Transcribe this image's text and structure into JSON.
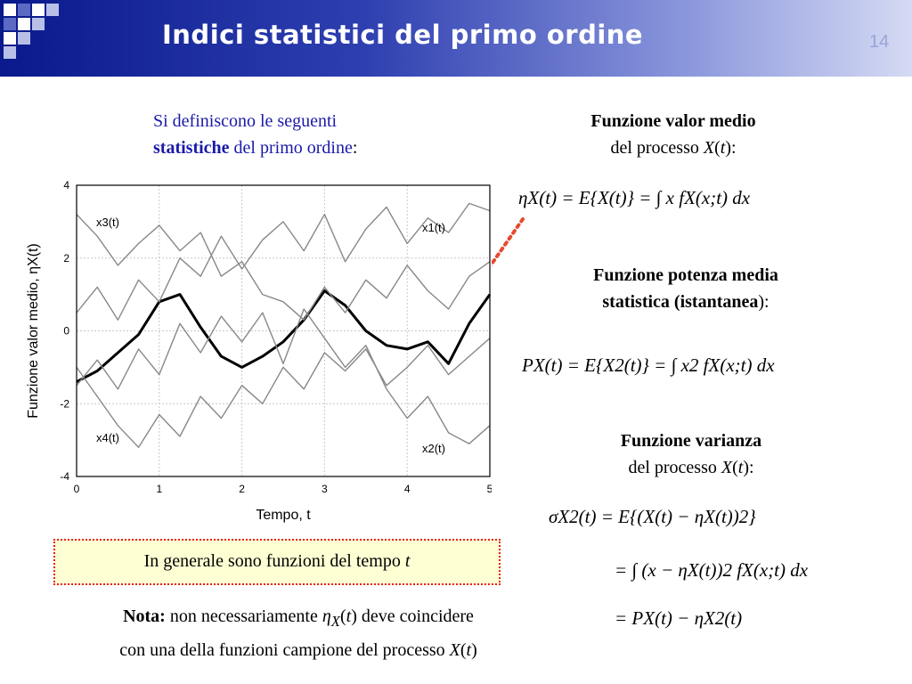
{
  "slide": {
    "title": "Indici statistici del primo ordine",
    "number": "14"
  },
  "colors": {
    "header_dark": "#0a1a8c",
    "intro_text": "#1a1aa8",
    "note_border": "#e52020",
    "note_bg": "#ffffd4",
    "arrow": "#e54a2e"
  },
  "intro": {
    "line1": "Si definiscono le seguenti",
    "bold": "statistiche",
    "line2_rest": " del primo ordine",
    "colon": ":"
  },
  "mean": {
    "heading": "Funzione valor medio",
    "sub_pre": "del processo ",
    "sub_var": "X",
    "sub_arg": "t",
    "formula": "ηX(t) = E{X(t)} = ∫ x fX(x;t) dx"
  },
  "power": {
    "heading_1": "Funzione potenza media",
    "heading_2a": "statistica (",
    "heading_2b": "istantanea",
    "heading_2c": "):",
    "formula": "PX(t) = E{X2(t)} = ∫ x2 fX(x;t) dx"
  },
  "variance": {
    "heading": "Funzione varianza",
    "sub_pre": "del processo ",
    "sub_var": "X",
    "sub_arg": "t",
    "formula_1": "σX2(t) = E{(X(t) − ηX(t))2}",
    "formula_2": "= ∫ (x − ηX(t))2 fX(x;t) dx",
    "formula_3": "= PX(t) − ηX2(t)"
  },
  "note_box": {
    "text": "In generale sono funzioni del tempo ",
    "var": "t"
  },
  "nota": {
    "label": "Nota:",
    "text1": " non necessariamente ",
    "eta": "η",
    "sub": "X",
    "arg": "t",
    "text2": " deve coincidere",
    "line2": "con una della funzioni campione del processo ",
    "var": "X",
    "var_arg": "t"
  },
  "chart_data": {
    "type": "line",
    "xlabel": "Tempo, t",
    "ylabel": "Funzione valor medio, ηX(t)",
    "xlim": [
      0,
      5
    ],
    "ylim": [
      -4,
      4
    ],
    "xticks": [
      "0",
      "1",
      "2",
      "3",
      "4",
      "5"
    ],
    "yticks": [
      "4",
      "2",
      "0",
      "-2",
      "-4"
    ],
    "grid": true,
    "annotations": [
      "x3(t)",
      "x1(t)",
      "x4(t)",
      "x2(t)"
    ],
    "series": [
      {
        "name": "ηX(t)",
        "x": [
          0,
          0.25,
          0.5,
          0.75,
          1.0,
          1.25,
          1.5,
          1.75,
          2.0,
          2.25,
          2.5,
          2.75,
          3.0,
          3.25,
          3.5,
          3.75,
          4.0,
          4.25,
          4.5,
          4.75,
          5.0
        ],
        "y": [
          -1.4,
          -1.1,
          -0.6,
          -0.1,
          0.8,
          1.0,
          0.1,
          -0.7,
          -1.0,
          -0.7,
          -0.3,
          0.3,
          1.1,
          0.7,
          0.0,
          -0.4,
          -0.5,
          -0.3,
          -0.9,
          0.2,
          1.0
        ]
      },
      {
        "name": "x1(t)",
        "x": [
          0,
          0.25,
          0.5,
          0.75,
          1.0,
          1.25,
          1.5,
          1.75,
          2.0,
          2.25,
          2.5,
          2.75,
          3.0,
          3.25,
          3.5,
          3.75,
          4.0,
          4.25,
          4.5,
          4.75,
          5.0
        ],
        "y": [
          0.5,
          1.2,
          0.3,
          1.4,
          0.8,
          2.0,
          1.5,
          2.6,
          1.7,
          2.5,
          3.0,
          2.2,
          3.2,
          1.9,
          2.8,
          3.4,
          2.4,
          3.1,
          2.7,
          3.5,
          3.3
        ]
      },
      {
        "name": "x2(t)",
        "x": [
          0,
          0.25,
          0.5,
          0.75,
          1.0,
          1.25,
          1.5,
          1.75,
          2.0,
          2.25,
          2.5,
          2.75,
          3.0,
          3.25,
          3.5,
          3.75,
          4.0,
          4.25,
          4.5,
          4.75,
          5.0
        ],
        "y": [
          -1.5,
          -0.8,
          -1.6,
          -0.5,
          -1.2,
          0.2,
          -0.6,
          0.4,
          -0.3,
          0.5,
          -0.9,
          0.6,
          -0.2,
          -1.0,
          -0.4,
          -1.6,
          -2.4,
          -1.8,
          -2.8,
          -3.1,
          -2.6
        ]
      },
      {
        "name": "x3(t)",
        "x": [
          0,
          0.25,
          0.5,
          0.75,
          1.0,
          1.25,
          1.5,
          1.75,
          2.0,
          2.25,
          2.5,
          2.75,
          3.0,
          3.25,
          3.5,
          3.75,
          4.0,
          4.25,
          4.5,
          4.75,
          5.0
        ],
        "y": [
          3.2,
          2.6,
          1.8,
          2.4,
          2.9,
          2.2,
          2.7,
          1.5,
          1.9,
          1.0,
          0.8,
          0.3,
          1.2,
          0.5,
          1.4,
          0.9,
          1.8,
          1.1,
          0.6,
          1.5,
          1.9
        ]
      },
      {
        "name": "x4(t)",
        "x": [
          0,
          0.25,
          0.5,
          0.75,
          1.0,
          1.25,
          1.5,
          1.75,
          2.0,
          2.25,
          2.5,
          2.75,
          3.0,
          3.25,
          3.5,
          3.75,
          4.0,
          4.25,
          4.5,
          4.75,
          5.0
        ],
        "y": [
          -1.0,
          -1.8,
          -2.6,
          -3.2,
          -2.3,
          -2.9,
          -1.8,
          -2.4,
          -1.5,
          -2.0,
          -1.0,
          -1.6,
          -0.6,
          -1.1,
          -0.5,
          -1.5,
          -1.0,
          -0.4,
          -1.2,
          -0.7,
          -0.2
        ]
      }
    ]
  }
}
